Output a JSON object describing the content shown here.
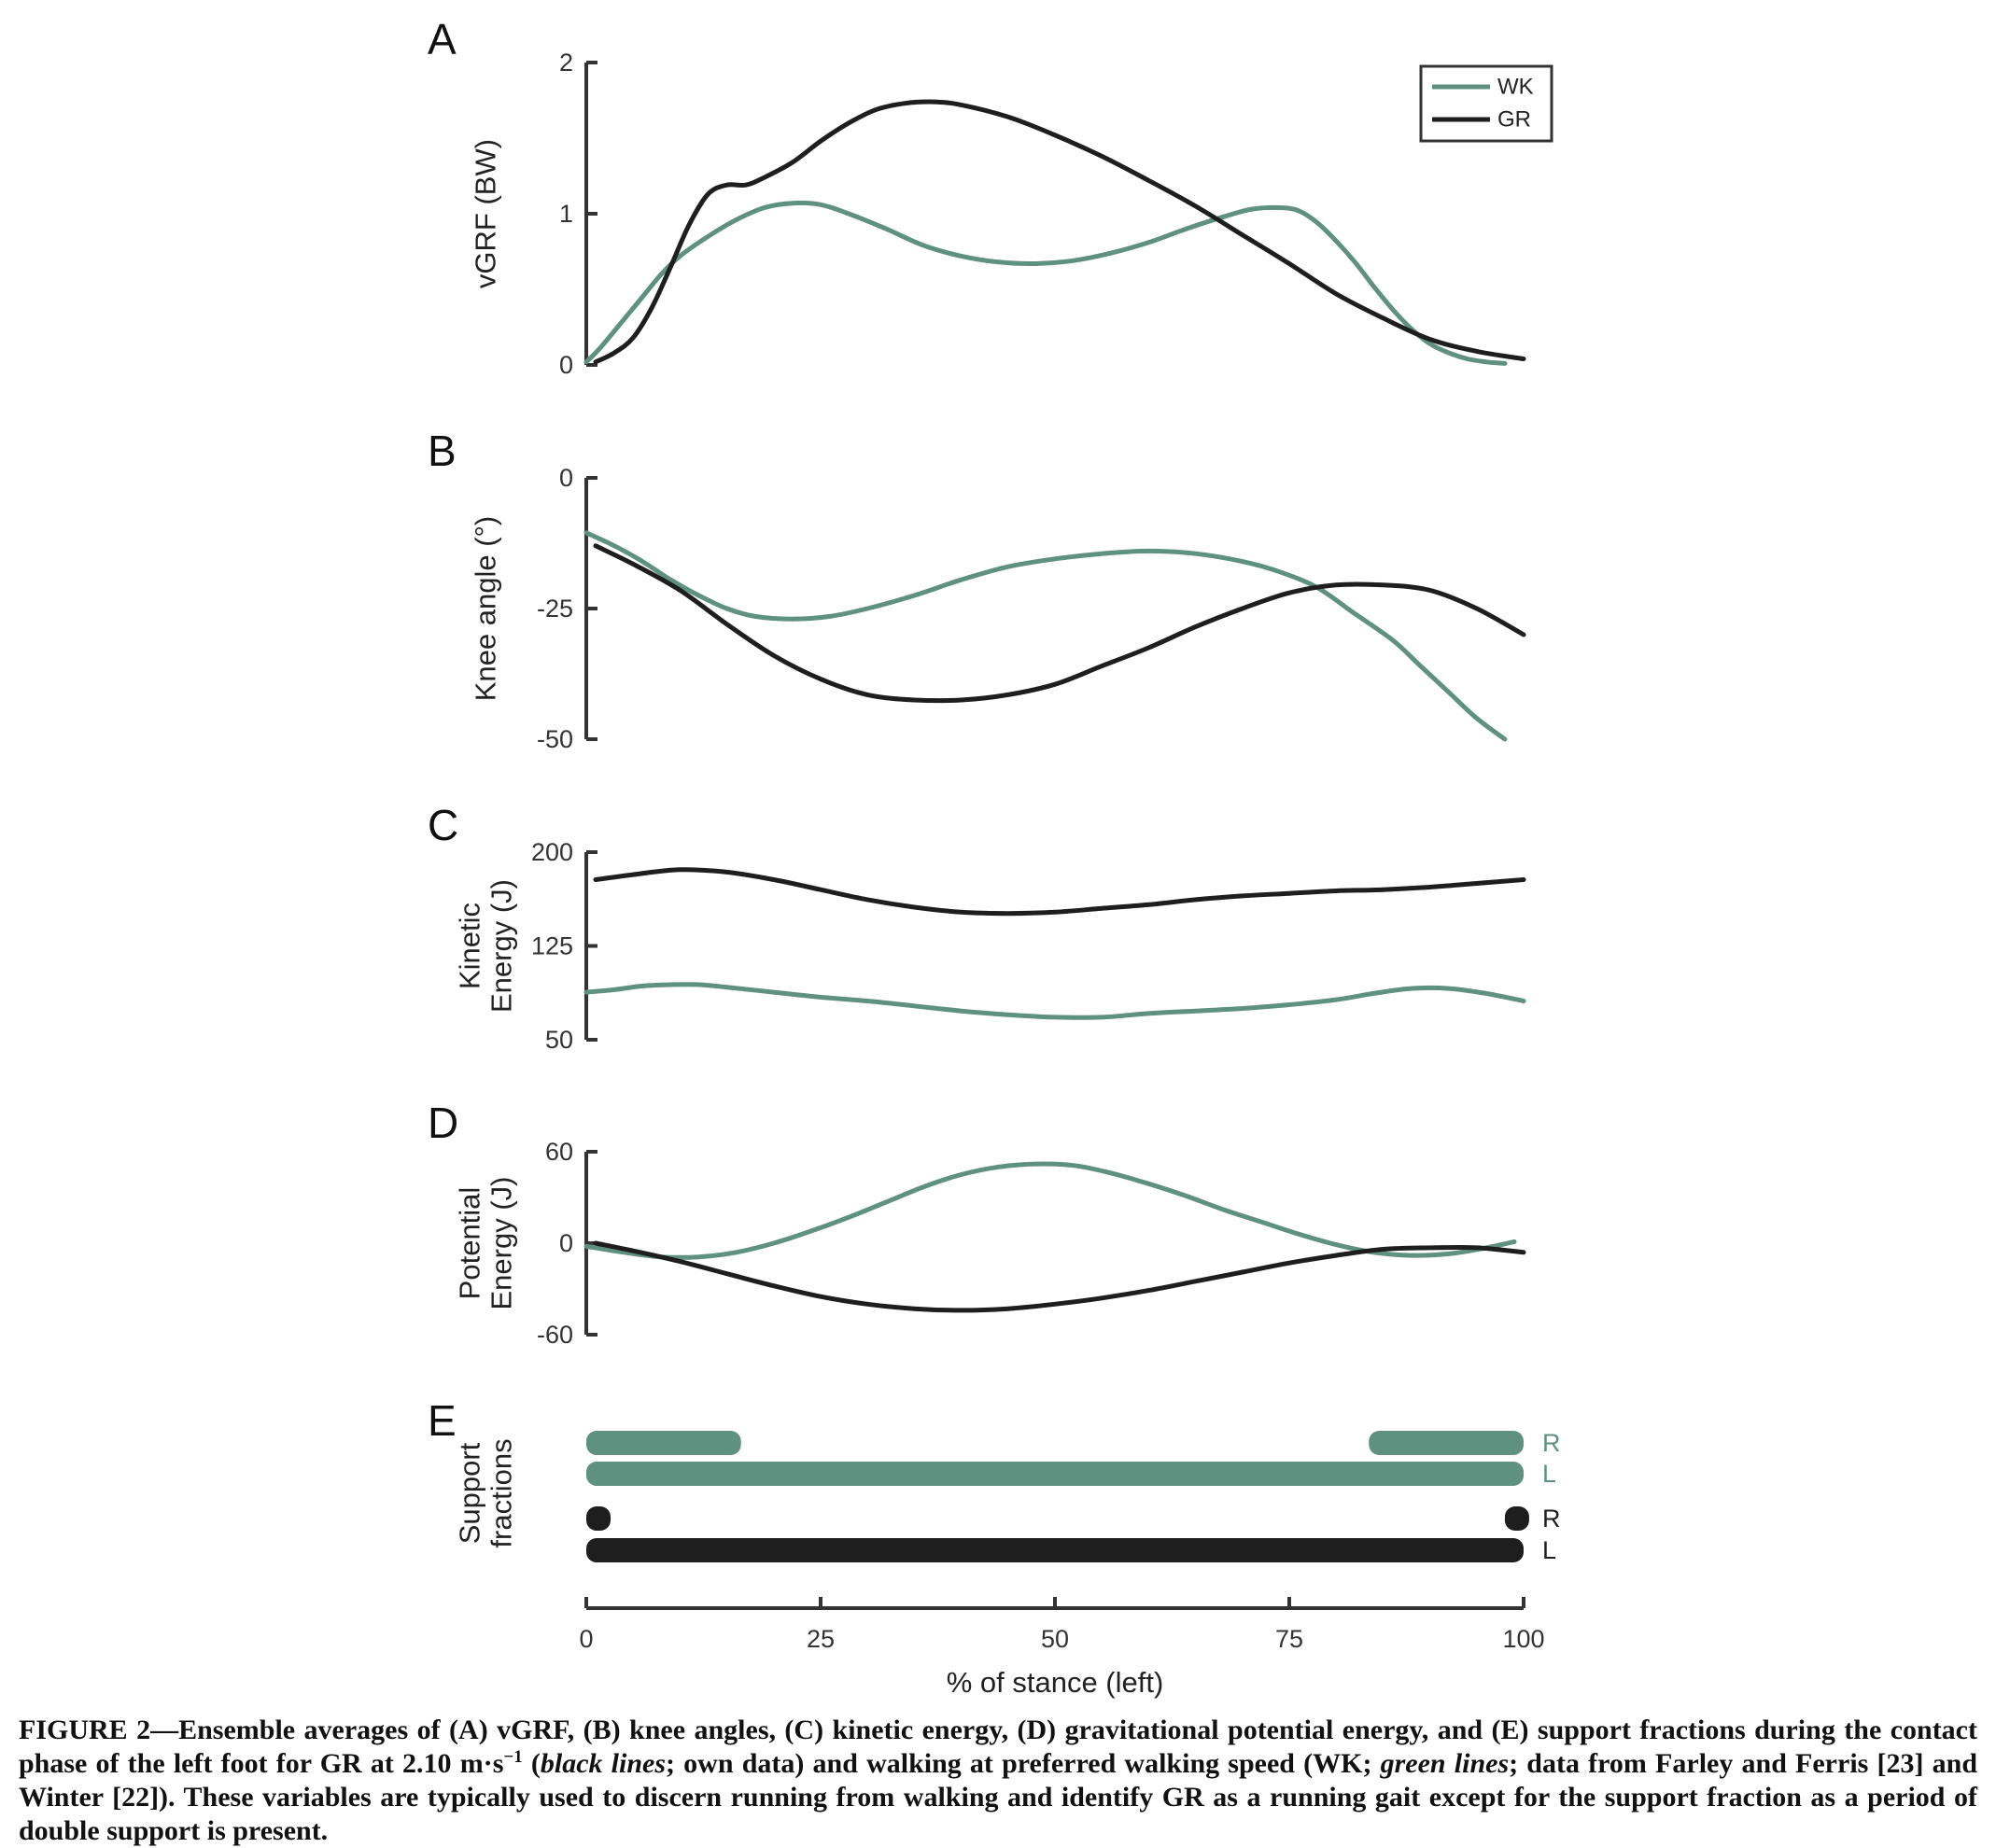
{
  "colors": {
    "wk": "#5F9180",
    "gr": "#1E1E1E"
  },
  "legend": [
    {
      "key": "wk",
      "label": "WK"
    },
    {
      "key": "gr",
      "label": "GR"
    }
  ],
  "x_axis": {
    "label": "% of stance (left)",
    "ticks": [
      0,
      25,
      50,
      75,
      100
    ],
    "tick_labels": [
      "0",
      "25",
      "50",
      "75",
      "100"
    ],
    "range": [
      0,
      100
    ]
  },
  "chart_data": [
    {
      "id": "A",
      "letter": "A",
      "type": "line",
      "ylabel": "vGRF (BW)",
      "ylim": [
        0,
        2
      ],
      "yticks": [
        0,
        1,
        2
      ],
      "ytick_labels": [
        "0",
        "1",
        "2"
      ],
      "series": [
        {
          "name": "WK",
          "key": "wk",
          "x": [
            0,
            1,
            2,
            4,
            6,
            8,
            10,
            13,
            16,
            19,
            22,
            25,
            28,
            32,
            36,
            40,
            44,
            48,
            52,
            56,
            60,
            64,
            68,
            71,
            74,
            76,
            78,
            80,
            82,
            84,
            86,
            88,
            90,
            92,
            94,
            96,
            98
          ],
          "y": [
            0.02,
            0.08,
            0.15,
            0.3,
            0.45,
            0.6,
            0.72,
            0.85,
            0.96,
            1.04,
            1.07,
            1.06,
            1.0,
            0.9,
            0.79,
            0.72,
            0.68,
            0.67,
            0.69,
            0.74,
            0.81,
            0.9,
            0.98,
            1.03,
            1.04,
            1.02,
            0.94,
            0.82,
            0.68,
            0.52,
            0.37,
            0.24,
            0.14,
            0.08,
            0.04,
            0.02,
            0.01
          ]
        },
        {
          "name": "GR",
          "key": "gr",
          "x": [
            1,
            3,
            5,
            7,
            9,
            11,
            13,
            15,
            17,
            19,
            22,
            25,
            28,
            31,
            34,
            37,
            40,
            45,
            50,
            55,
            60,
            65,
            70,
            75,
            80,
            85,
            90,
            95,
            100
          ],
          "y": [
            0.02,
            0.08,
            0.18,
            0.38,
            0.65,
            0.93,
            1.13,
            1.19,
            1.19,
            1.24,
            1.34,
            1.48,
            1.6,
            1.69,
            1.73,
            1.74,
            1.72,
            1.64,
            1.52,
            1.38,
            1.22,
            1.05,
            0.86,
            0.67,
            0.47,
            0.31,
            0.17,
            0.09,
            0.04
          ]
        }
      ]
    },
    {
      "id": "B",
      "letter": "B",
      "type": "line",
      "ylabel": "Knee angle (°)",
      "ylim": [
        -50,
        0
      ],
      "yticks": [
        -50,
        -25,
        0
      ],
      "ytick_labels": [
        "-50",
        "-25",
        "0"
      ],
      "series": [
        {
          "name": "WK",
          "key": "wk",
          "x": [
            0,
            3,
            6,
            9,
            12,
            15,
            18,
            22,
            26,
            30,
            35,
            40,
            45,
            50,
            55,
            60,
            65,
            70,
            74,
            78,
            82,
            86,
            89,
            92,
            95,
            98
          ],
          "y": [
            -10.5,
            -13,
            -16,
            -19.5,
            -22.5,
            -25,
            -26.5,
            -27,
            -26.5,
            -25,
            -22.5,
            -19.5,
            -17,
            -15.5,
            -14.5,
            -14,
            -14.5,
            -16,
            -18,
            -21,
            -26,
            -31,
            -36,
            -41,
            -46,
            -50
          ]
        },
        {
          "name": "GR",
          "key": "gr",
          "x": [
            1,
            5,
            10,
            15,
            20,
            25,
            30,
            35,
            40,
            45,
            50,
            55,
            60,
            65,
            70,
            75,
            80,
            85,
            90,
            95,
            100
          ],
          "y": [
            -13,
            -16.5,
            -21.5,
            -28,
            -34,
            -38.5,
            -41.5,
            -42.5,
            -42.5,
            -41.5,
            -39.5,
            -36,
            -32.5,
            -28.5,
            -25,
            -22,
            -20.5,
            -20.5,
            -21.5,
            -25,
            -30
          ]
        }
      ]
    },
    {
      "id": "C",
      "letter": "C",
      "type": "line",
      "ylabel": "Kinetic Energy (J)",
      "ylabel_lines": [
        "Kinetic",
        "Energy (J)"
      ],
      "ylim": [
        50,
        200
      ],
      "yticks": [
        50,
        125,
        200
      ],
      "ytick_labels": [
        "50",
        "125",
        "200"
      ],
      "series": [
        {
          "name": "WK",
          "key": "wk",
          "x": [
            0,
            3,
            6,
            9,
            12,
            15,
            20,
            25,
            30,
            35,
            40,
            45,
            50,
            55,
            60,
            65,
            70,
            75,
            80,
            84,
            88,
            92,
            96,
            100
          ],
          "y": [
            88,
            90,
            93,
            94,
            94,
            92,
            88,
            84,
            81,
            77,
            73,
            70,
            68,
            68,
            71,
            73,
            75,
            78,
            82,
            87,
            91,
            91,
            87,
            81
          ]
        },
        {
          "name": "GR",
          "key": "gr",
          "x": [
            1,
            5,
            10,
            15,
            20,
            25,
            30,
            35,
            40,
            45,
            50,
            55,
            60,
            65,
            70,
            75,
            80,
            85,
            90,
            95,
            100
          ],
          "y": [
            178,
            182,
            186,
            184,
            178,
            170,
            162,
            156,
            152,
            151,
            152,
            155,
            158,
            162,
            165,
            167,
            169,
            170,
            172,
            175,
            178
          ]
        }
      ]
    },
    {
      "id": "D",
      "letter": "D",
      "type": "line",
      "ylabel": "Potential Energy (J)",
      "ylabel_lines": [
        "Potential",
        "Energy (J)"
      ],
      "ylim": [
        -60,
        60
      ],
      "yticks": [
        -60,
        0,
        60
      ],
      "ytick_labels": [
        "-60",
        "0",
        "60"
      ],
      "series": [
        {
          "name": "WK",
          "key": "wk",
          "x": [
            0,
            4,
            8,
            12,
            16,
            20,
            24,
            28,
            32,
            36,
            40,
            44,
            48,
            52,
            56,
            60,
            64,
            68,
            72,
            76,
            80,
            84,
            88,
            92,
            96,
            99
          ],
          "y": [
            -2,
            -6,
            -9,
            -9,
            -6,
            0,
            8,
            17,
            27,
            37,
            45,
            50,
            52,
            51,
            46,
            39,
            31,
            22,
            14,
            6,
            -1,
            -6,
            -8,
            -7,
            -3,
            1
          ]
        },
        {
          "name": "GR",
          "key": "gr",
          "x": [
            1,
            5,
            10,
            15,
            20,
            25,
            30,
            35,
            40,
            45,
            50,
            55,
            60,
            65,
            70,
            75,
            80,
            85,
            90,
            95,
            100
          ],
          "y": [
            0,
            -5,
            -12,
            -20,
            -28,
            -35,
            -40,
            -43,
            -44,
            -43,
            -40,
            -36,
            -31,
            -25,
            -19,
            -13,
            -8,
            -4,
            -3,
            -3,
            -6
          ]
        }
      ]
    },
    {
      "id": "E",
      "letter": "E",
      "type": "bar",
      "ylabel": "Support fractions",
      "ylabel_lines": [
        "Support",
        "fractions"
      ],
      "bars": [
        {
          "key": "wk",
          "label": "R",
          "segments": [
            [
              0,
              16.5
            ],
            [
              83.5,
              100
            ]
          ]
        },
        {
          "key": "wk",
          "label": "L",
          "segments": [
            [
              0,
              100
            ]
          ]
        },
        {
          "key": "gr",
          "label": "R",
          "segments": [
            [
              0,
              2
            ],
            [
              98,
              100
            ]
          ]
        },
        {
          "key": "gr",
          "label": "L",
          "segments": [
            [
              0,
              100
            ]
          ]
        }
      ]
    }
  ],
  "caption": {
    "lead": "FIGURE 2—Ensemble averages of (A) vGRF, (B) knee angles, (C) kinetic energy, (D) gravitational potential energy, and (E) support fractions during the contact phase of the left foot for GR at 2.10 m·s",
    "exponent": "−1",
    "open_paren": " (",
    "black_italic": "black lines",
    "mid": "; own data) and walking at preferred walking speed (WK; ",
    "green_italic": "green lines",
    "tail": "; data from Farley and Ferris [23] and Winter [22]). These variables are typically used to discern running from walking and identify GR as a running gait except for the support fraction as a period of double support is present."
  }
}
